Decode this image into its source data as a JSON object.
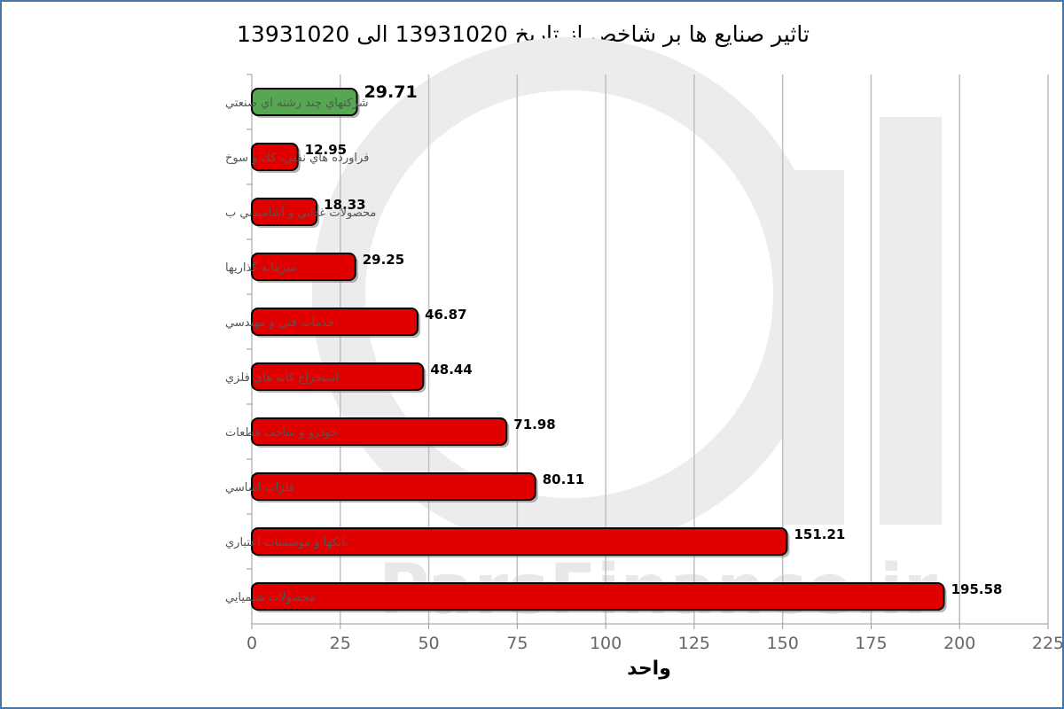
{
  "chart_data": {
    "type": "bar",
    "orientation": "horizontal",
    "title": "تاثیر صنایع ها بر شاخص از تاریخ 13931020 الی 13931020",
    "xlabel": "واحد",
    "ylabel": "",
    "xlim": [
      0,
      225
    ],
    "xticks": [
      "0",
      "25",
      "50",
      "75",
      "100",
      "125",
      "150",
      "175",
      "200",
      "225"
    ],
    "grid": true,
    "legend": "none",
    "categories": [
      "شركتهاي چند رشته اي صنعتي",
      "فراورده هاي نفتي، كك و سوخ",
      "محصولات غذايي و آشاميدني ب",
      "سرمايه گذاريها",
      "خدمات فني و مهندسي",
      "استخراج كانه هاي فلزي",
      "خودرو و ساخت قطعات",
      "فلزات اساسي",
      "بانكها و موسسات اعتباري",
      "محصولات شيميايي"
    ],
    "values": [
      29.71,
      12.95,
      18.33,
      29.25,
      46.87,
      48.44,
      71.98,
      80.11,
      151.21,
      195.58
    ],
    "value_labels": [
      "29.71",
      "12.95",
      "18.33",
      "29.25",
      "46.87",
      "48.44",
      "71.98",
      "80.11",
      "151.21",
      "195.58"
    ],
    "bar_colors": [
      "#55a84f",
      "#e00000",
      "#e00000",
      "#e00000",
      "#e00000",
      "#e00000",
      "#e00000",
      "#e00000",
      "#e00000",
      "#e00000"
    ]
  },
  "watermark": {
    "text": "ParsFinance.ir"
  },
  "colors": {
    "frame": "#4a73a8",
    "grid": "#bfbfbf",
    "positive": "#55a84f",
    "negative": "#e00000"
  }
}
